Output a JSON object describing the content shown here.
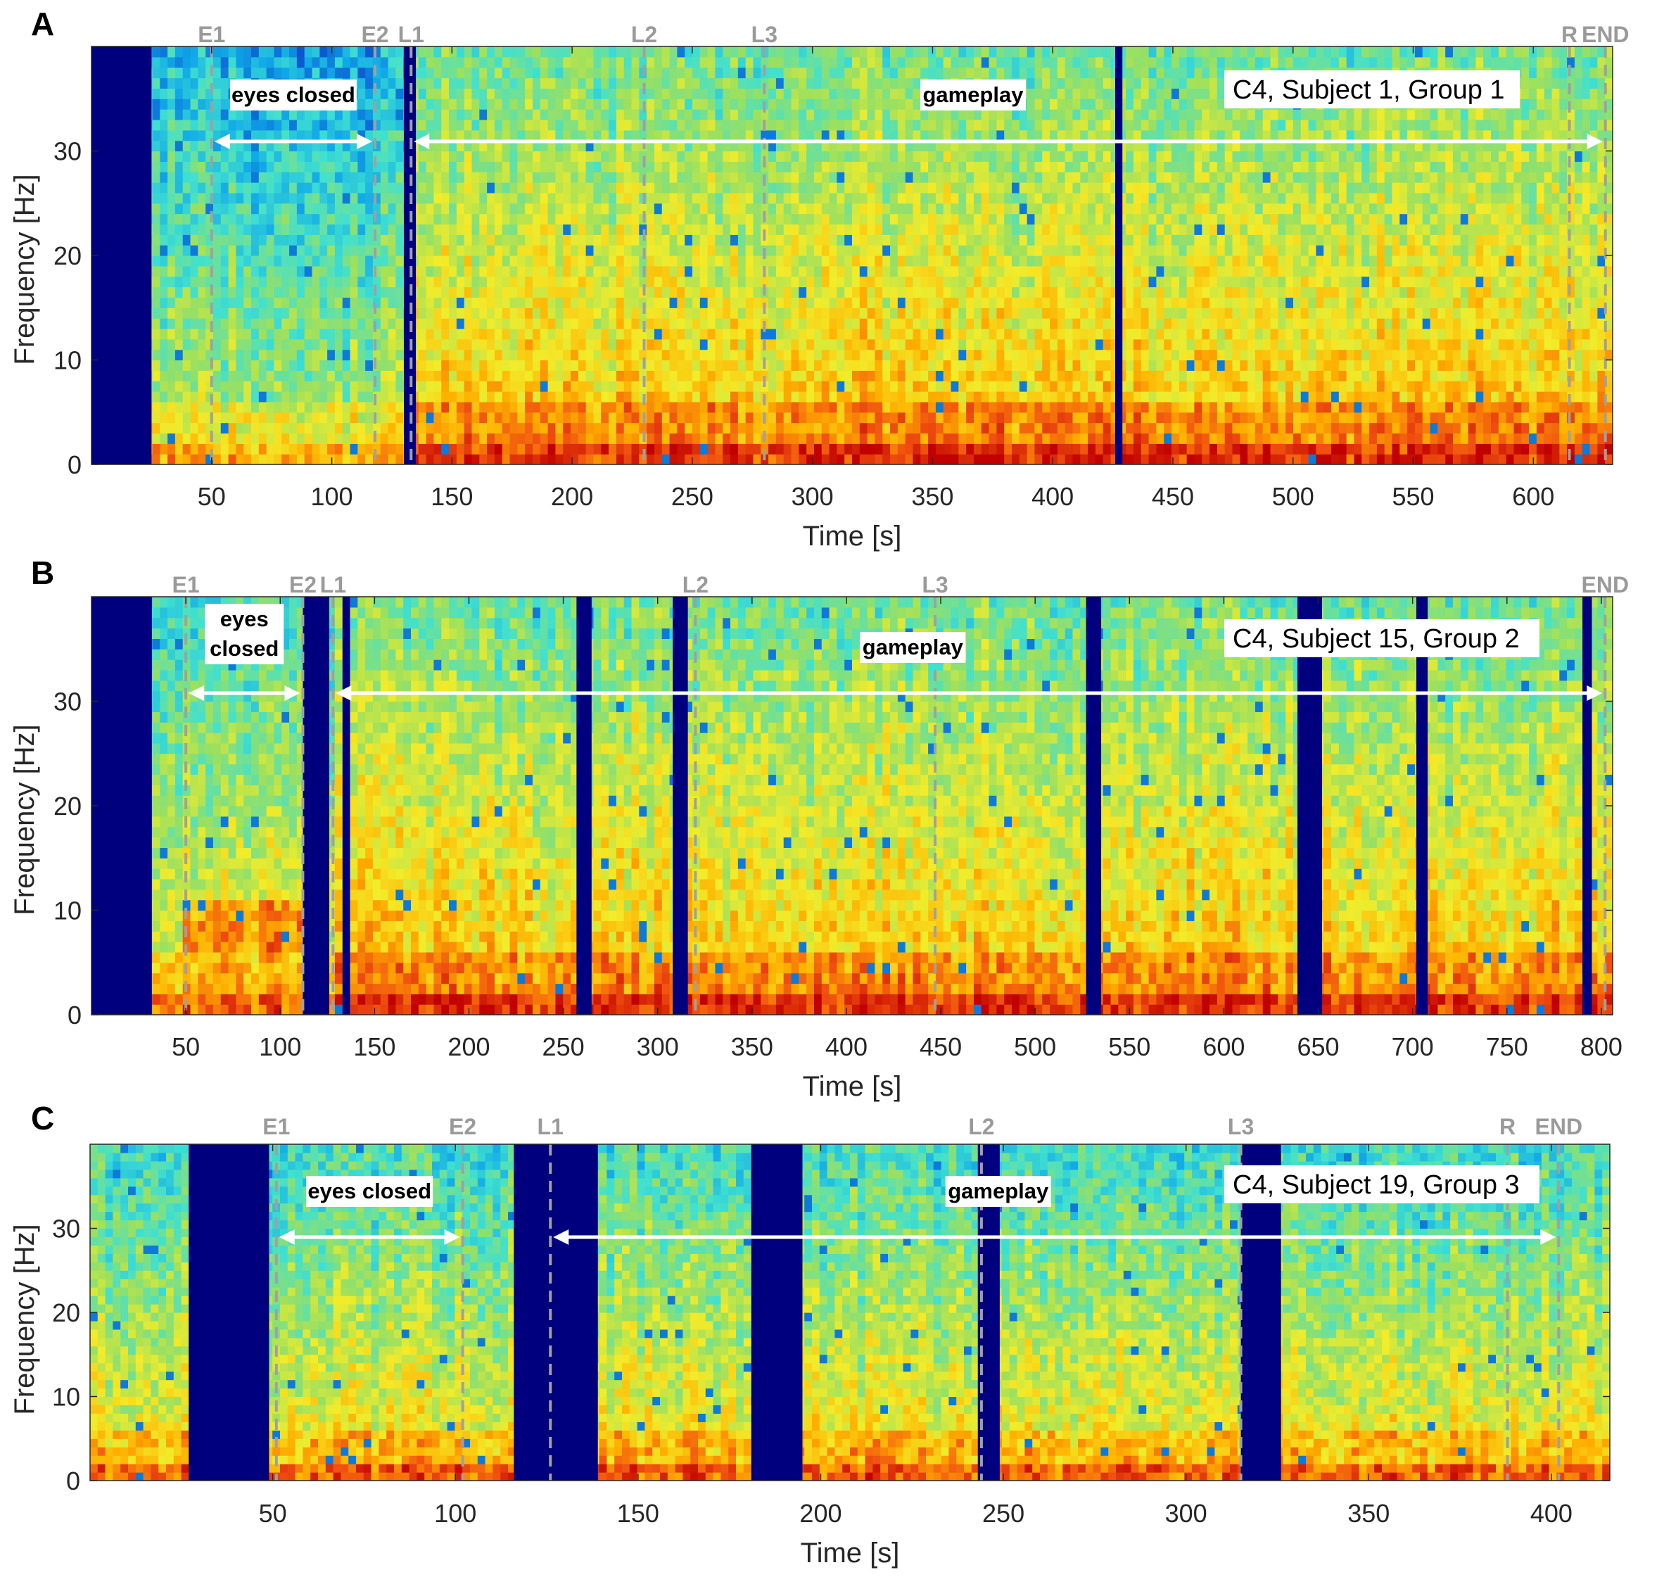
{
  "figure": {
    "ylabel": "Frequency [Hz]",
    "xlabel": "Time [s]"
  },
  "colors": {
    "gap": "#00007f",
    "marker_line": "#a0a0a0",
    "arrow": "#ffffff",
    "colormap": [
      "#0a3fc8",
      "#10a8e8",
      "#40e0d0",
      "#9be060",
      "#f2ec2a",
      "#ffb000",
      "#f05010",
      "#c00000"
    ]
  },
  "chart_data": [
    {
      "type": "heatmap",
      "panel": "A",
      "title": "C4, Subject 1, Group 1",
      "xlim": [
        0,
        633
      ],
      "ylim": [
        0,
        40
      ],
      "xticks": [
        50,
        100,
        150,
        200,
        250,
        300,
        350,
        400,
        450,
        500,
        550,
        600
      ],
      "yticks": [
        0,
        10,
        20,
        30
      ],
      "data_start": 25,
      "gaps": [
        [
          0,
          25
        ],
        [
          130,
          135
        ],
        [
          426,
          429
        ]
      ],
      "markers": [
        {
          "label": "E1",
          "t": 50
        },
        {
          "label": "E2",
          "t": 118
        },
        {
          "label": "L1",
          "t": 133
        },
        {
          "label": "L2",
          "t": 230
        },
        {
          "label": "L3",
          "t": 280
        },
        {
          "label": "R",
          "t": 615
        },
        {
          "label": "END",
          "t": 630
        }
      ],
      "regions": [
        {
          "label": "eyes closed",
          "start": 50,
          "end": 118
        },
        {
          "label": "gameplay",
          "start": 133,
          "end": 630
        }
      ],
      "eyes_alpha": []
    },
    {
      "type": "heatmap",
      "panel": "B",
      "title": "C4, Subject 15, Group 2",
      "xlim": [
        0,
        806
      ],
      "ylim": [
        0,
        40
      ],
      "xticks": [
        50,
        100,
        150,
        200,
        250,
        300,
        350,
        400,
        450,
        500,
        550,
        600,
        650,
        700,
        750,
        800
      ],
      "yticks": [
        0,
        10,
        20,
        30
      ],
      "data_start": 32,
      "gaps": [
        [
          0,
          32
        ],
        [
          112,
          126
        ],
        [
          133,
          137
        ],
        [
          257,
          265
        ],
        [
          308,
          316
        ],
        [
          527,
          535
        ],
        [
          639,
          652
        ],
        [
          702,
          708
        ],
        [
          790,
          795
        ]
      ],
      "markers": [
        {
          "label": "E1",
          "t": 50
        },
        {
          "label": "E2",
          "t": 112
        },
        {
          "label": "L1",
          "t": 128
        },
        {
          "label": "L2",
          "t": 320
        },
        {
          "label": "L3",
          "t": 447
        },
        {
          "label": "END",
          "t": 802
        }
      ],
      "regions": [
        {
          "label": "eyes closed",
          "start": 50,
          "end": 112
        },
        {
          "label": "gameplay",
          "start": 128,
          "end": 802
        }
      ],
      "eyes_alpha": [
        [
          50,
          112,
          10
        ],
        [
          50,
          112,
          7.5
        ]
      ]
    },
    {
      "type": "heatmap",
      "panel": "C",
      "title": "C4, Subject 19, Group 3",
      "xlim": [
        0,
        416
      ],
      "ylim": [
        0,
        40
      ],
      "xticks": [
        50,
        100,
        150,
        200,
        250,
        300,
        350,
        400
      ],
      "yticks": [
        0,
        10,
        20,
        30
      ],
      "data_start": 0,
      "gaps": [
        [
          27,
          49
        ],
        [
          116,
          139
        ],
        [
          181,
          195
        ],
        [
          243,
          249
        ],
        [
          315,
          326
        ]
      ],
      "markers": [
        {
          "label": "E1",
          "t": 51
        },
        {
          "label": "E2",
          "t": 102
        },
        {
          "label": "L1",
          "t": 126
        },
        {
          "label": "L2",
          "t": 244
        },
        {
          "label": "L3",
          "t": 315
        },
        {
          "label": "R",
          "t": 388
        },
        {
          "label": "END",
          "t": 402
        }
      ],
      "regions": [
        {
          "label": "eyes closed",
          "start": 51,
          "end": 102
        },
        {
          "label": "gameplay",
          "start": 126,
          "end": 402
        }
      ],
      "eyes_alpha": []
    }
  ]
}
